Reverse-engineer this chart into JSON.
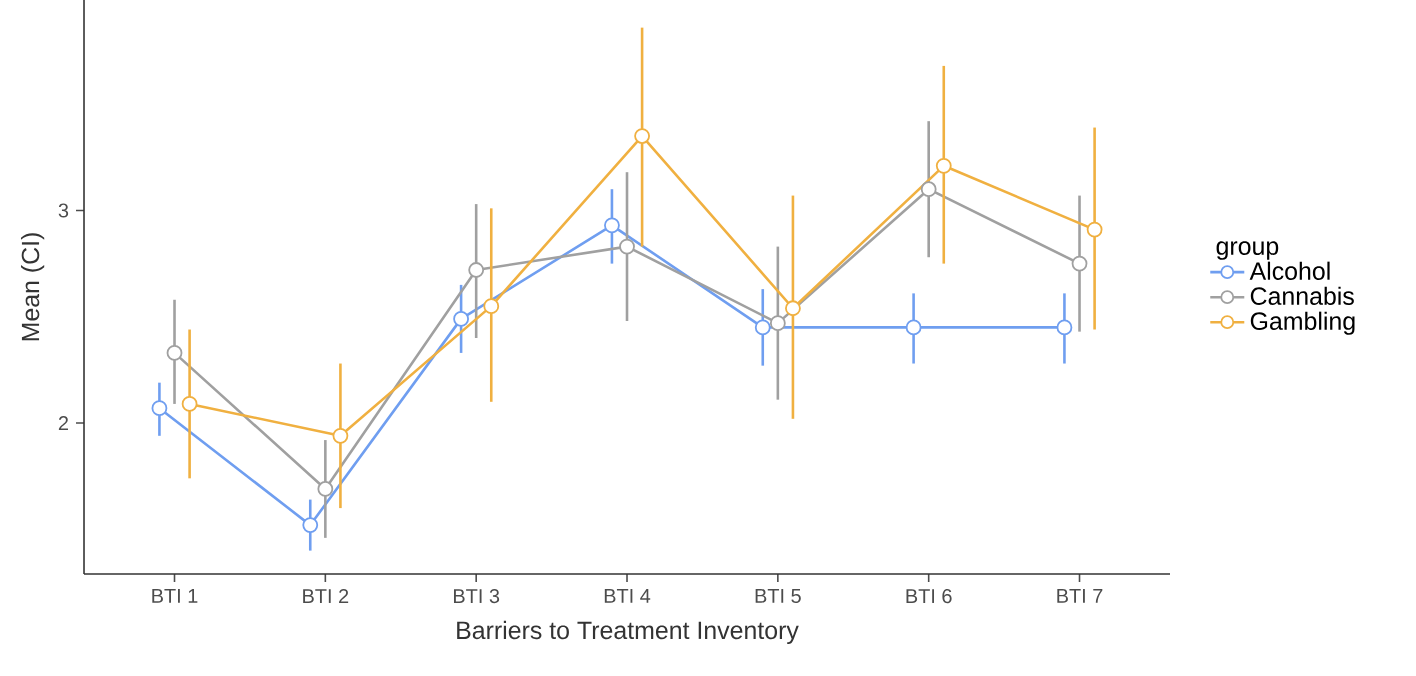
{
  "chart_data": {
    "type": "line",
    "xlabel": "Barriers to Treatment Inventory",
    "ylabel": "Mean (CI)",
    "legend_title": "group",
    "categories": [
      "BTI 1",
      "BTI 2",
      "BTI 3",
      "BTI 4",
      "BTI 5",
      "BTI 6",
      "BTI 7"
    ],
    "ylim": [
      1.29,
      3.99
    ],
    "yticks": [
      2,
      3
    ],
    "grid": false,
    "legend": "right",
    "marker": "circle",
    "line_style": "solid",
    "series": [
      {
        "name": "Alcohol",
        "color": "#6f9ef0",
        "values": [
          2.07,
          1.52,
          2.49,
          2.93,
          2.45,
          2.45,
          2.45
        ],
        "errors": [
          [
            1.94,
            2.19
          ],
          [
            1.4,
            1.64
          ],
          [
            2.33,
            2.65
          ],
          [
            2.75,
            3.1
          ],
          [
            2.27,
            2.63
          ],
          [
            2.28,
            2.61
          ],
          [
            2.28,
            2.61
          ]
        ]
      },
      {
        "name": "Cannabis",
        "color": "#a0a0a0",
        "values": [
          2.33,
          1.69,
          2.72,
          2.83,
          2.47,
          3.1,
          2.75
        ],
        "errors": [
          [
            2.09,
            2.58
          ],
          [
            1.46,
            1.92
          ],
          [
            2.4,
            3.03
          ],
          [
            2.48,
            3.18
          ],
          [
            2.11,
            2.83
          ],
          [
            2.78,
            3.42
          ],
          [
            2.43,
            3.07
          ]
        ]
      },
      {
        "name": "Gambling",
        "color": "#f0b040",
        "values": [
          2.09,
          1.94,
          2.55,
          3.35,
          2.54,
          3.21,
          2.91
        ],
        "errors": [
          [
            1.74,
            2.44
          ],
          [
            1.6,
            2.28
          ],
          [
            2.1,
            3.01
          ],
          [
            2.83,
            3.86
          ],
          [
            2.02,
            3.07
          ],
          [
            2.75,
            3.68
          ],
          [
            2.44,
            3.39
          ]
        ]
      }
    ]
  }
}
